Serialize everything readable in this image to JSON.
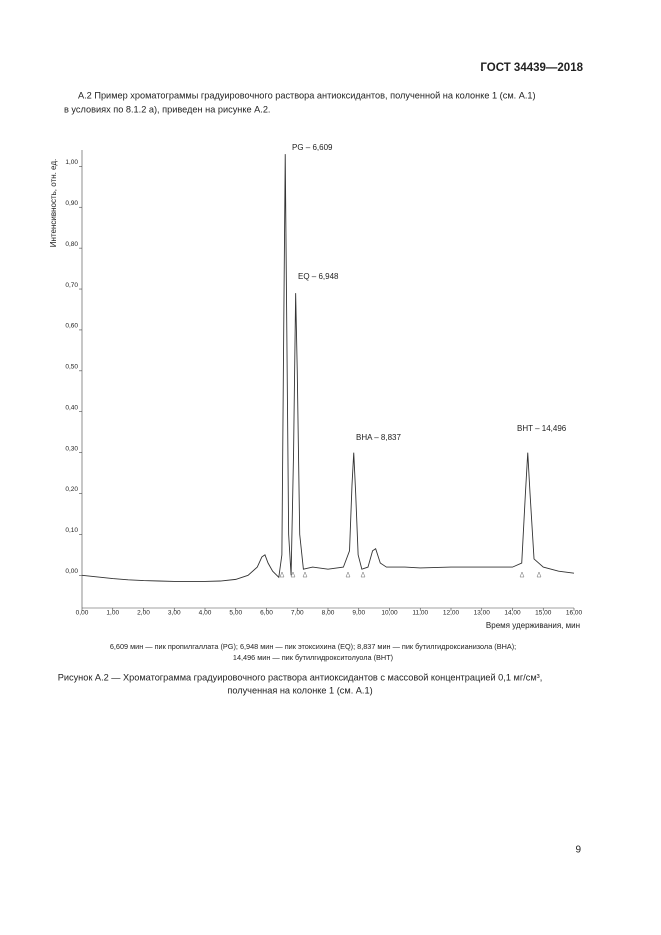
{
  "header": {
    "title": "ГОСТ 34439—2018"
  },
  "paragraph": [
    "А.2 Пример хроматограммы градуировочного раствора антиоксидантов, полученной на колонке 1 (см. А.1)",
    "в условиях по 8.1.2 а), приведен на рисунке А.2."
  ],
  "chart_data": {
    "type": "line",
    "y_label": "Интенсивность, отн. ед.",
    "x_label": "Время удерживания, мин",
    "x": [
      0,
      0.5,
      1,
      1.5,
      2,
      2.5,
      3,
      3.5,
      4,
      4.5,
      5,
      5.4,
      5.7,
      5.85,
      5.95,
      6.05,
      6.2,
      6.4,
      6.5,
      6.56,
      6.609,
      6.66,
      6.72,
      6.8,
      6.88,
      6.948,
      7.0,
      7.08,
      7.2,
      7.5,
      8,
      8.5,
      8.7,
      8.78,
      8.837,
      8.9,
      8.98,
      9.1,
      9.3,
      9.45,
      9.55,
      9.7,
      9.9,
      10.5,
      11,
      12,
      13,
      14,
      14.3,
      14.42,
      14.496,
      14.57,
      14.7,
      15,
      15.5,
      16
    ],
    "values": [
      0,
      -0.004,
      -0.008,
      -0.011,
      -0.013,
      -0.014,
      -0.015,
      -0.015,
      -0.015,
      -0.014,
      -0.01,
      0.0,
      0.02,
      0.045,
      0.05,
      0.03,
      0.01,
      -0.005,
      0.05,
      0.6,
      1.03,
      0.6,
      0.1,
      0.0,
      0.3,
      0.69,
      0.5,
      0.1,
      0.015,
      0.02,
      0.015,
      0.02,
      0.06,
      0.22,
      0.3,
      0.2,
      0.05,
      0.015,
      0.02,
      0.06,
      0.065,
      0.03,
      0.02,
      0.02,
      0.018,
      0.02,
      0.02,
      0.02,
      0.03,
      0.2,
      0.3,
      0.2,
      0.04,
      0.02,
      0.01,
      0.005
    ],
    "color": "#333333",
    "xlim": [
      0,
      16
    ],
    "ylim": [
      -0.08,
      1.04
    ],
    "xticks": [
      {
        "value": 0,
        "label": "0,00"
      },
      {
        "value": 1,
        "label": "1,00"
      },
      {
        "value": 2,
        "label": "2,00"
      },
      {
        "value": 3,
        "label": "3,00"
      },
      {
        "value": 4,
        "label": "4,00"
      },
      {
        "value": 5,
        "label": "5,00"
      },
      {
        "value": 6,
        "label": "6,00"
      },
      {
        "value": 7,
        "label": "7,00"
      },
      {
        "value": 8,
        "label": "8,00"
      },
      {
        "value": 9,
        "label": "9,00"
      },
      {
        "value": 10,
        "label": "10,00"
      },
      {
        "value": 11,
        "label": "11,00"
      },
      {
        "value": 12,
        "label": "12,00"
      },
      {
        "value": 13,
        "label": "13,00"
      },
      {
        "value": 14,
        "label": "14,00"
      },
      {
        "value": 15,
        "label": "15,00"
      },
      {
        "value": 16,
        "label": "16,00"
      }
    ],
    "yticks": [
      {
        "value": 0,
        "label": "0,00"
      },
      {
        "value": 0.1,
        "label": "0,10"
      },
      {
        "value": 0.2,
        "label": "0,20"
      },
      {
        "value": 0.3,
        "label": "0,30"
      },
      {
        "value": 0.4,
        "label": "0,40"
      },
      {
        "value": 0.5,
        "label": "0,50"
      },
      {
        "value": 0.6,
        "label": "0,60"
      },
      {
        "value": 0.7,
        "label": "0,70"
      },
      {
        "value": 0.8,
        "label": "0,80"
      },
      {
        "value": 0.9,
        "label": "0,90"
      },
      {
        "value": 1,
        "label": "1,00"
      }
    ],
    "annotations": [
      "PG – 6,609",
      "EQ – 6,948",
      "BHA – 8,837",
      "BHT – 14,496"
    ]
  },
  "legend_note": [
    "6,609 мин — пик пропилгаллата (PG); 6,948 мин — пик этоксихина (EQ); 8,837 мин — пик бутилгидроксианизола (BHA);",
    "14,496 мин — пик бутилгидрокситолуола (BHT)"
  ],
  "caption": [
    "Рисунок А.2 — Хроматограмма градуировочного раствора антиоксидантов с массовой концентрацией 0,1 мг/см³,",
    "полученная на колонке 1 (см. А.1)"
  ],
  "page_number": "9"
}
